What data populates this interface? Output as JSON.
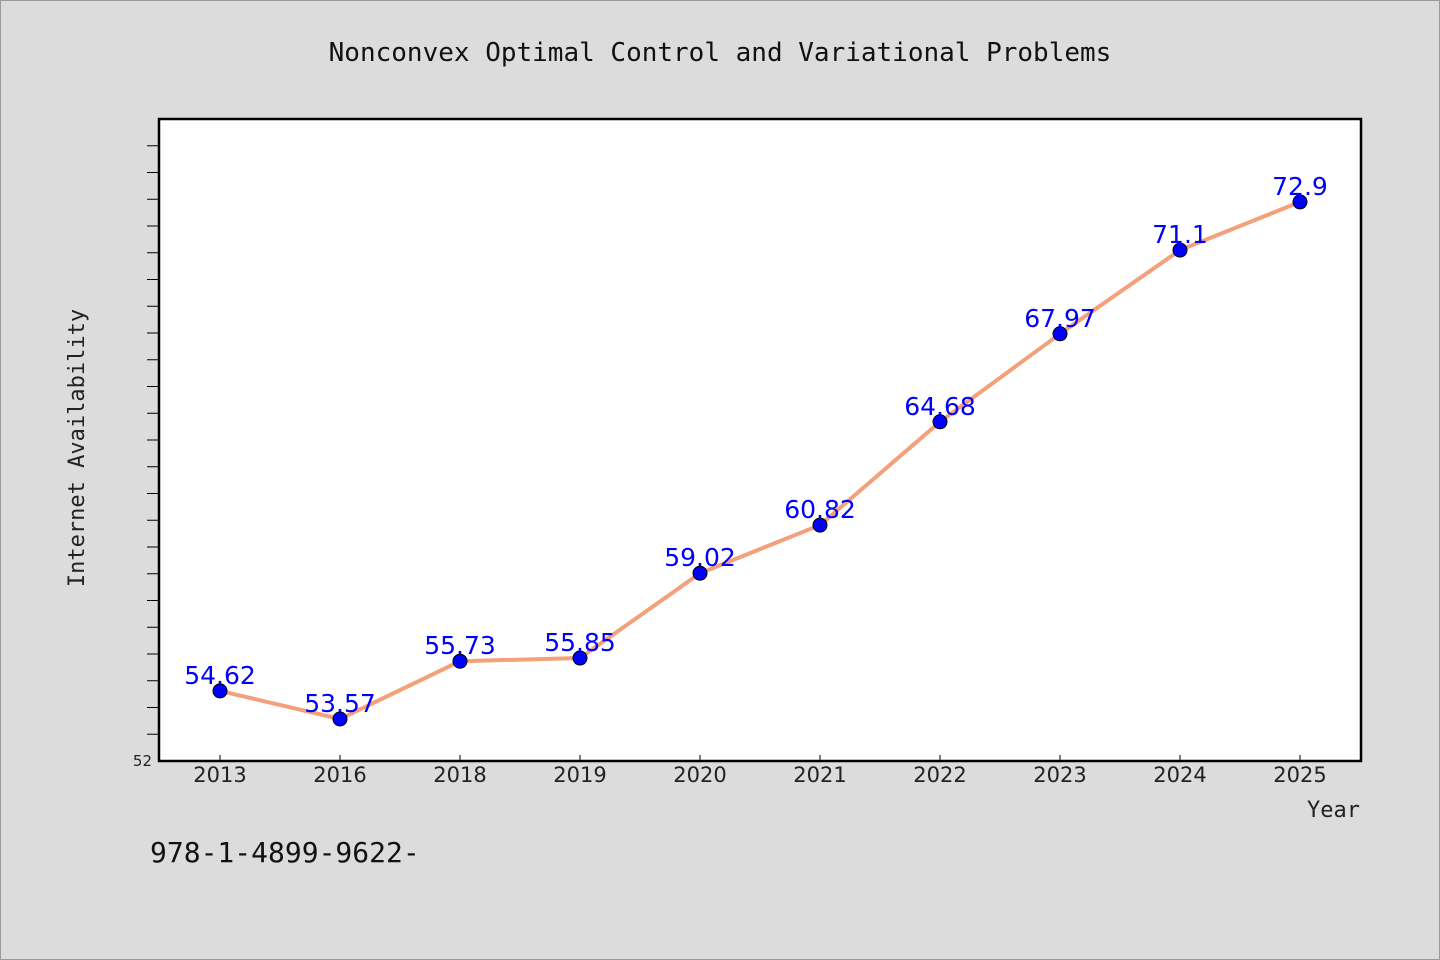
{
  "chart_data": {
    "type": "line",
    "title": "Nonconvex Optimal Control and Variational Problems",
    "xlabel": "Year",
    "ylabel": "Internet Availability",
    "categories": [
      "2013",
      "2016",
      "2018",
      "2019",
      "2020",
      "2021",
      "2022",
      "2023",
      "2024",
      "2025"
    ],
    "series": [
      {
        "values": [
          54.62,
          53.57,
          55.73,
          55.85,
          59.02,
          60.82,
          64.68,
          67.97,
          71.1,
          72.9
        ],
        "data_labels": [
          "54.62",
          "53.57",
          "55.73",
          "55.85",
          "59.02",
          "60.82",
          "64.68",
          "67.97",
          "71.1",
          "72.9"
        ],
        "line_color": "#f4a07a",
        "marker_color": "#0000ff"
      }
    ],
    "ylim": [
      52,
      76
    ],
    "y_tick_labels": [
      "52"
    ],
    "grid": false,
    "legend": "none"
  },
  "footer": {
    "text": "978-1-4899-9622-"
  },
  "colors": {
    "background": "#dcdcdc",
    "plot_background": "#ffffff",
    "line": "#f4a07a",
    "marker": "#0000ff",
    "data_label": "#0000ff"
  }
}
